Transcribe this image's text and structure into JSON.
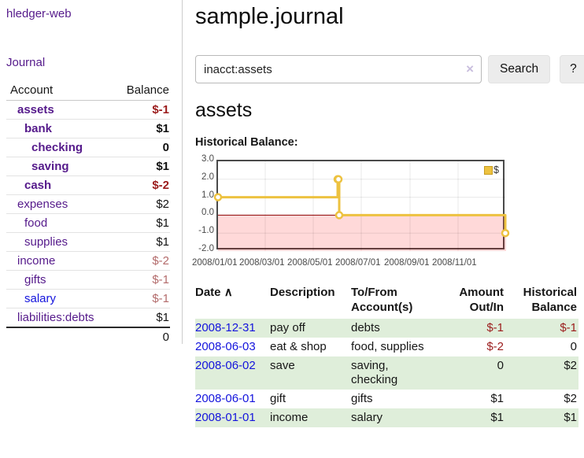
{
  "sidebar": {
    "brand": "hledger-web",
    "journal_label": "Journal",
    "accounts_table": {
      "account_header": "Account",
      "balance_header": "Balance",
      "rows": [
        {
          "label": "assets",
          "indent": 1,
          "bold": true,
          "value": "$-1",
          "value_style": "neg"
        },
        {
          "label": "bank",
          "indent": 2,
          "bold": true,
          "value": "$1",
          "value_style": "pos"
        },
        {
          "label": "checking",
          "indent": 3,
          "bold": true,
          "value": "0",
          "value_style": "pos"
        },
        {
          "label": "saving",
          "indent": 3,
          "bold": true,
          "value": "$1",
          "value_style": "pos"
        },
        {
          "label": "cash",
          "indent": 2,
          "bold": true,
          "value": "$-2",
          "value_style": "neg"
        },
        {
          "label": "expenses",
          "indent": 1,
          "bold": false,
          "value": "$2",
          "value_style": "pos"
        },
        {
          "label": "food",
          "indent": 2,
          "bold": false,
          "value": "$1",
          "value_style": "pos"
        },
        {
          "label": "supplies",
          "indent": 2,
          "bold": false,
          "value": "$1",
          "value_style": "pos"
        },
        {
          "label": "income",
          "indent": 1,
          "bold": false,
          "value": "$-2",
          "value_style": "neg-dim"
        },
        {
          "label": "gifts",
          "indent": 2,
          "bold": false,
          "value": "$-1",
          "value_style": "neg-dim"
        },
        {
          "label": "salary",
          "indent": 2,
          "bold": false,
          "value": "$-1",
          "value_style": "neg-dim",
          "link_color": "blue"
        },
        {
          "label": "liabilities:debts",
          "indent": 1,
          "bold": false,
          "value": "$1",
          "value_style": "pos"
        }
      ],
      "total": "0"
    }
  },
  "header": {
    "title": "sample.journal"
  },
  "search": {
    "value": "inacct:assets",
    "clear_icon": "×",
    "search_label": "Search",
    "help_label": "?"
  },
  "account_page": {
    "title": "assets",
    "chart_label": "Historical Balance:"
  },
  "chart_data": {
    "type": "line",
    "title": "Historical Balance",
    "steps": true,
    "series": [
      {
        "name": "$",
        "color": "#edc240",
        "points": [
          {
            "date": "2008-01-01",
            "day": 0,
            "value": 1
          },
          {
            "date": "2008-06-01",
            "day": 152,
            "value": 2
          },
          {
            "date": "2008-06-02",
            "day": 153,
            "value": 2
          },
          {
            "date": "2008-06-03",
            "day": 154,
            "value": 0
          },
          {
            "date": "2008-12-31",
            "day": 365,
            "value": -1
          }
        ]
      }
    ],
    "ylim": [
      -2,
      3
    ],
    "yticks": [
      "3.0",
      "2.0",
      "1.0",
      "0.0",
      "-1.0",
      "-2.0"
    ],
    "xticks": [
      {
        "label": "2008/01/01",
        "day": 0
      },
      {
        "label": "2008/03/01",
        "day": 60
      },
      {
        "label": "2008/05/01",
        "day": 121
      },
      {
        "label": "2008/07/01",
        "day": 182
      },
      {
        "label": "2008/09/01",
        "day": 244
      },
      {
        "label": "2008/11/01",
        "day": 305
      }
    ],
    "xrange_days": 366,
    "grid": true,
    "negative_region_color": "rgba(255,0,0,0.15)",
    "zero_line_color": "#8b0000",
    "legend": {
      "label": "$",
      "swatch_color": "#edc240",
      "position": "top-right"
    }
  },
  "transactions": {
    "columns": {
      "date": "Date",
      "description": "Description",
      "accounts": "To/From Account(s)",
      "amount": "Amount Out/In",
      "balance": "Historical Balance"
    },
    "sort_icon": "∧",
    "rows": [
      {
        "date": "2008-12-31",
        "description": "pay off",
        "accounts": "debts",
        "amount": "$-1",
        "amount_negative": true,
        "balance": "$-1",
        "balance_negative": true
      },
      {
        "date": "2008-06-03",
        "description": "eat & shop",
        "accounts": "food, supplies",
        "amount": "$-2",
        "amount_negative": true,
        "balance": "0",
        "balance_negative": false
      },
      {
        "date": "2008-06-02",
        "description": "save",
        "accounts": "saving, checking",
        "amount": "0",
        "amount_negative": false,
        "balance": "$2",
        "balance_negative": false
      },
      {
        "date": "2008-06-01",
        "description": "gift",
        "accounts": "gifts",
        "amount": "$1",
        "amount_negative": false,
        "balance": "$2",
        "balance_negative": false
      },
      {
        "date": "2008-01-01",
        "description": "income",
        "accounts": "salary",
        "amount": "$1",
        "amount_negative": false,
        "balance": "$1",
        "balance_negative": false
      }
    ]
  },
  "colors": {
    "link_purple": "#551a8b",
    "link_blue": "#1414dd",
    "negative_red": "#9b1c1c",
    "negative_dim": "#b36b6b",
    "row_stripe_green": "#dfeeda",
    "chart_line_yellow": "#edc240",
    "chart_zero_line": "#8b0000",
    "chart_border": "#4a4a4a"
  }
}
